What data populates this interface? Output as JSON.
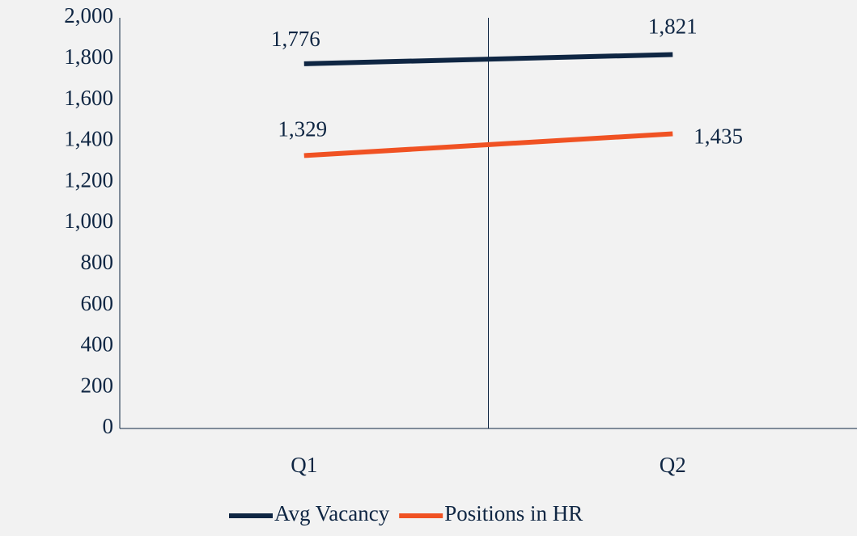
{
  "chart_data": {
    "type": "line",
    "categories": [
      "Q1",
      "Q2"
    ],
    "series": [
      {
        "name": "Avg Vacancy",
        "color": "#0f2643",
        "values": [
          1776,
          1821
        ],
        "value_labels": [
          "1,776",
          "1,821"
        ]
      },
      {
        "name": "Positions in HR",
        "color": "#f05223",
        "values": [
          1329,
          1435
        ],
        "value_labels": [
          "1,329",
          "1,435"
        ]
      }
    ],
    "ylim": [
      0,
      2000
    ],
    "yticks": [
      0,
      200,
      400,
      600,
      800,
      {
        "value": 1000,
        "label": "1,000"
      },
      {
        "value": 1200,
        "label": "1,200"
      },
      {
        "value": 1400,
        "label": "1,400"
      },
      {
        "value": 1600,
        "label": "1,600"
      },
      {
        "value": 1800,
        "label": "1,800"
      },
      {
        "value": 2000,
        "label": "2,000"
      }
    ],
    "grid": false,
    "legend": "bottom"
  }
}
